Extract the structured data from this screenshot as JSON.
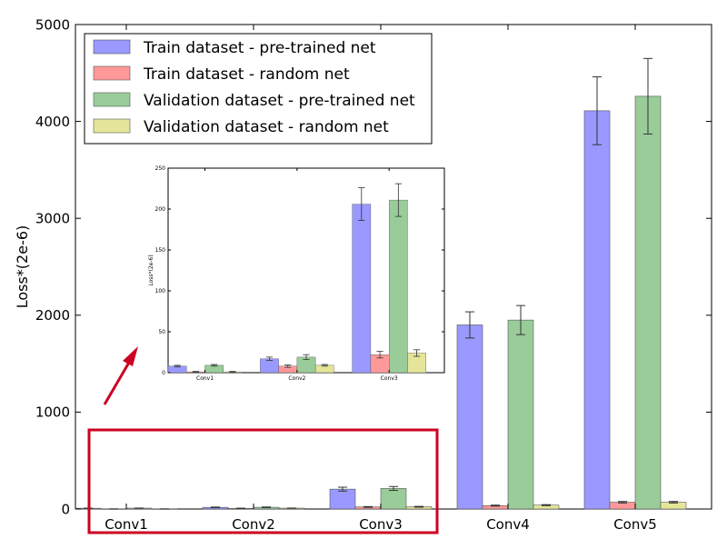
{
  "chart_data": [
    {
      "type": "bar",
      "categories": [
        "Conv1",
        "Conv2",
        "Conv3",
        "Conv4",
        "Conv5"
      ],
      "ylabel": "Loss*(2e-6)",
      "ylim": [
        0,
        5000
      ],
      "yticks": [
        0,
        1000,
        2000,
        3000,
        4000,
        5000
      ],
      "grid": false,
      "legend_position": "top-left",
      "series": [
        {
          "name": "Train dataset - pre-trained net",
          "color": "#9999ff",
          "values": [
            8,
            17,
            205,
            1900,
            4110
          ],
          "errors": [
            1,
            3,
            20,
            135,
            350
          ]
        },
        {
          "name": "Train dataset - random net",
          "color": "#ff9999",
          "values": [
            1,
            7,
            21,
            35,
            70
          ],
          "errors": [
            0.5,
            1.5,
            4,
            5,
            8
          ]
        },
        {
          "name": "Validation dataset - pre-trained net",
          "color": "#99cc99",
          "values": [
            9,
            18,
            212,
            1950,
            4260
          ],
          "errors": [
            1,
            3,
            20,
            150,
            390
          ]
        },
        {
          "name": "Validation dataset - random net",
          "color": "#e5e599",
          "values": [
            1,
            9,
            23,
            40,
            70
          ],
          "errors": [
            0.5,
            1,
            4,
            5,
            8
          ]
        }
      ]
    },
    {
      "type": "bar",
      "categories": [
        "Conv1",
        "Conv2",
        "Conv3"
      ],
      "ylabel": "Loss*(2e-6)",
      "ylim": [
        0,
        250
      ],
      "yticks": [
        0,
        50,
        100,
        150,
        200,
        250
      ],
      "grid": false,
      "series": [
        {
          "name": "Train dataset - pre-trained net",
          "color": "#9999ff",
          "values": [
            8,
            17,
            206
          ],
          "errors": [
            1,
            2,
            20
          ]
        },
        {
          "name": "Train dataset - random net",
          "color": "#ff9999",
          "values": [
            1,
            8,
            22
          ],
          "errors": [
            0.5,
            1.5,
            4
          ]
        },
        {
          "name": "Validation dataset - pre-trained net",
          "color": "#99cc99",
          "values": [
            9,
            19,
            211
          ],
          "errors": [
            1,
            3,
            20
          ]
        },
        {
          "name": "Validation dataset - random net",
          "color": "#e5e599",
          "values": [
            1,
            9,
            24
          ],
          "errors": [
            0.5,
            1,
            4
          ]
        }
      ]
    }
  ],
  "annotations": {
    "highlight_color": "#cc0022",
    "arrow_color": "#cc0022"
  }
}
